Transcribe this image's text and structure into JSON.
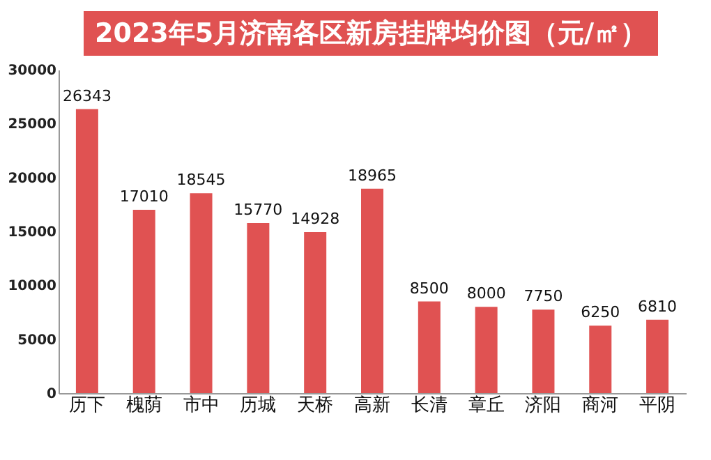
{
  "chart_data": {
    "type": "bar",
    "title": "2023年5月济南各区新房挂牌均价图（元/㎡）",
    "categories": [
      "历下",
      "槐荫",
      "市中",
      "历城",
      "天桥",
      "高新",
      "长清",
      "章丘",
      "济阳",
      "商河",
      "平阴"
    ],
    "values": [
      26343,
      17010,
      18545,
      15770,
      14928,
      18965,
      8500,
      8000,
      7750,
      6250,
      6810
    ],
    "color": "#e05252",
    "data_labels": true,
    "grid": false,
    "ylim": [
      0,
      30000
    ],
    "yticks": [
      0,
      5000,
      10000,
      15000,
      20000,
      25000,
      30000
    ]
  }
}
